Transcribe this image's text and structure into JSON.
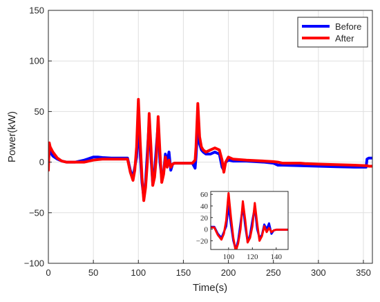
{
  "chart_data": [
    {
      "type": "line",
      "title": "",
      "xlabel": "Time(s)",
      "ylabel": "Power(kW)",
      "xlim": [
        0,
        360
      ],
      "ylim": [
        -100,
        150
      ],
      "xticks": [
        0,
        50,
        100,
        150,
        200,
        250,
        300,
        350
      ],
      "yticks": [
        -100,
        -50,
        0,
        50,
        100,
        150
      ],
      "xtick_labels": [
        "0",
        "50",
        "100",
        "150",
        "200",
        "250",
        "300",
        "350"
      ],
      "ytick_labels": [
        "−100",
        "−50",
        "0",
        "50",
        "100",
        "150"
      ],
      "grid": true,
      "legend": "top-right",
      "series": [
        {
          "name": "Before",
          "color": "#0000ff",
          "x": [
            0,
            1,
            2,
            5,
            10,
            15,
            20,
            30,
            40,
            50,
            55,
            60,
            70,
            80,
            88,
            91,
            94,
            96,
            98,
            100,
            102,
            104,
            106,
            108,
            110,
            112,
            114,
            116,
            118,
            120,
            122,
            124,
            126,
            128,
            130,
            132,
            134,
            136,
            138,
            140,
            145,
            150,
            155,
            160,
            163,
            164,
            166,
            168,
            170,
            172,
            175,
            180,
            185,
            190,
            193,
            195,
            197,
            200,
            205,
            220,
            240,
            250,
            255,
            260,
            280,
            300,
            320,
            340,
            353,
            354,
            356,
            360
          ],
          "y": [
            -2,
            12,
            10,
            6,
            3,
            1,
            0,
            0,
            2,
            5,
            5,
            4.5,
            4,
            4,
            4,
            -8,
            -15,
            -5,
            5,
            40,
            8,
            -20,
            -35,
            -20,
            10,
            40,
            5,
            -22,
            -10,
            15,
            38,
            0,
            -15,
            -10,
            8,
            0,
            10,
            -8,
            -2,
            -1,
            -1,
            -1,
            -1,
            -1,
            -6,
            5,
            35,
            18,
            12,
            10,
            8,
            8,
            10,
            8,
            -5,
            -8,
            0,
            2,
            1,
            1,
            0,
            -1,
            -3,
            -3,
            -3.5,
            -4,
            -4.5,
            -5,
            -5,
            3,
            4,
            4
          ]
        },
        {
          "name": "After",
          "color": "#ff0000",
          "x": [
            0,
            1,
            2,
            5,
            10,
            15,
            20,
            30,
            40,
            50,
            55,
            60,
            70,
            80,
            88,
            91,
            94,
            96,
            98,
            100,
            102,
            104,
            106,
            108,
            110,
            112,
            114,
            116,
            118,
            120,
            122,
            124,
            126,
            128,
            130,
            132,
            134,
            136,
            138,
            140,
            145,
            150,
            155,
            160,
            163,
            164,
            166,
            168,
            170,
            172,
            175,
            180,
            185,
            190,
            193,
            195,
            197,
            200,
            205,
            220,
            240,
            250,
            255,
            260,
            280,
            285,
            300,
            320,
            340,
            353,
            354,
            356,
            360
          ],
          "y": [
            -8,
            19,
            15,
            10,
            4,
            1,
            0,
            0,
            0,
            2,
            2.5,
            3,
            3,
            3,
            3,
            -10,
            -18,
            -8,
            15,
            62,
            20,
            -15,
            -38,
            -25,
            0,
            48,
            15,
            -23,
            -15,
            5,
            45,
            10,
            -20,
            -12,
            5,
            -5,
            2,
            -5,
            -2,
            -1,
            -1,
            -1,
            -1,
            -1,
            2,
            15,
            58,
            25,
            15,
            12,
            10,
            12,
            14,
            12,
            2,
            -10,
            0,
            5,
            3,
            2,
            1,
            0.5,
            0,
            -1,
            -1,
            -1.5,
            -2,
            -2.5,
            -3,
            -3.5,
            -3.5,
            -4,
            -4
          ]
        }
      ]
    },
    {
      "type": "line",
      "title": "",
      "xlabel": "",
      "ylabel": "",
      "xlim": [
        85,
        150
      ],
      "ylim": [
        -35,
        65
      ],
      "xticks": [
        100,
        120,
        140
      ],
      "yticks": [
        -20,
        0,
        20,
        40,
        60
      ],
      "xtick_labels": [
        "100",
        "120",
        "140"
      ],
      "ytick_labels": [
        "−20",
        "0",
        "20",
        "40",
        "60"
      ],
      "grid": false,
      "legend": "none",
      "series": [
        {
          "color": "#0000ff",
          "x": [
            85,
            88,
            91,
            94,
            96,
            98,
            100,
            102,
            104,
            106,
            108,
            110,
            112,
            114,
            116,
            118,
            120,
            122,
            124,
            126,
            128,
            130,
            132,
            134,
            136,
            138,
            140,
            145,
            150
          ],
          "y": [
            4,
            4,
            -8,
            -15,
            -5,
            5,
            40,
            8,
            -20,
            -35,
            -20,
            10,
            40,
            5,
            -22,
            -10,
            15,
            38,
            0,
            -15,
            -10,
            8,
            0,
            10,
            -8,
            -2,
            -1,
            -1,
            -1
          ]
        },
        {
          "color": "#ff0000",
          "x": [
            85,
            88,
            91,
            94,
            96,
            98,
            100,
            102,
            104,
            106,
            108,
            110,
            112,
            114,
            116,
            118,
            120,
            122,
            124,
            126,
            128,
            130,
            132,
            134,
            136,
            138,
            140,
            145,
            150
          ],
          "y": [
            3,
            3,
            -10,
            -18,
            -8,
            15,
            62,
            20,
            -15,
            -38,
            -25,
            0,
            48,
            15,
            -23,
            -15,
            5,
            45,
            10,
            -20,
            -12,
            5,
            -5,
            2,
            -5,
            -2,
            -1,
            -1,
            -1
          ]
        }
      ]
    }
  ]
}
